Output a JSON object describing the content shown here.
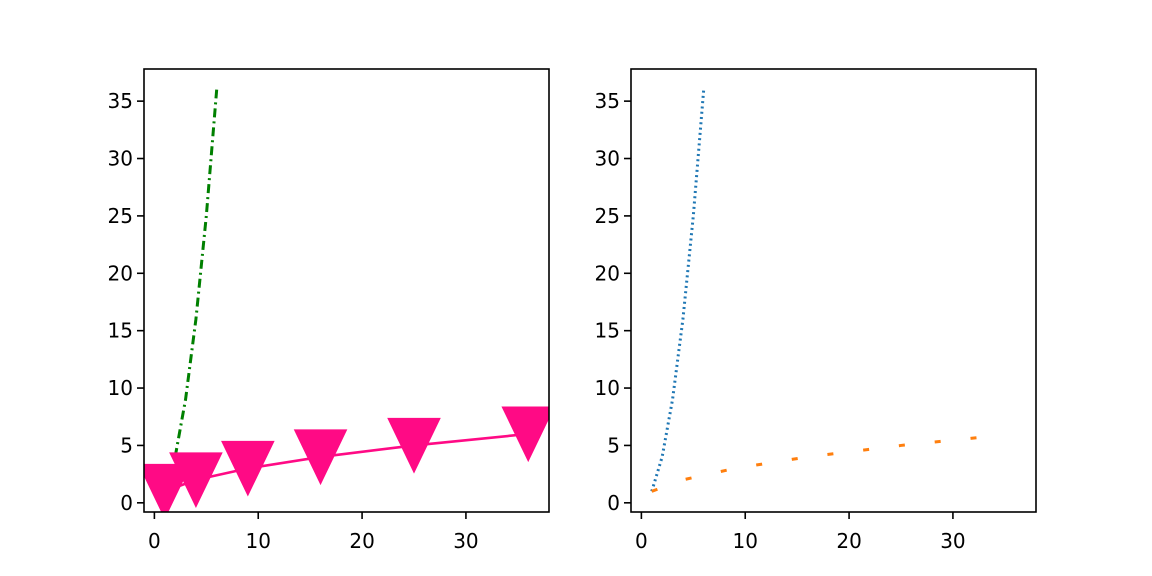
{
  "chart_data": [
    {
      "type": "line",
      "xlim": [
        -1,
        38
      ],
      "ylim": [
        -0.8,
        37.8
      ],
      "xticks": [
        0,
        10,
        20,
        30
      ],
      "yticks": [
        0,
        5,
        10,
        15,
        20,
        25,
        30,
        35
      ],
      "xtick_labels": [
        "0",
        "10",
        "20",
        "30"
      ],
      "ytick_labels": [
        "0",
        "5",
        "10",
        "15",
        "20",
        "25",
        "30",
        "35"
      ],
      "grid": false,
      "series": [
        {
          "style": "dashdot",
          "color": "#008000",
          "marker": "none",
          "x": [
            2,
            3,
            4,
            5,
            6
          ],
          "y": [
            4,
            9,
            16,
            25,
            36
          ]
        },
        {
          "style": "solid",
          "color": "#ff0a85",
          "marker": "triangle-down",
          "x": [
            1,
            4,
            9,
            16,
            25,
            36
          ],
          "y": [
            1,
            2,
            3,
            4,
            5,
            6
          ]
        }
      ]
    },
    {
      "type": "line",
      "xlim": [
        -1,
        38
      ],
      "ylim": [
        -0.8,
        37.8
      ],
      "xticks": [
        0,
        10,
        20,
        30
      ],
      "yticks": [
        0,
        5,
        10,
        15,
        20,
        25,
        30,
        35
      ],
      "xtick_labels": [
        "0",
        "10",
        "20",
        "30"
      ],
      "ytick_labels": [
        "0",
        "5",
        "10",
        "15",
        "20",
        "25",
        "30",
        "35"
      ],
      "grid": false,
      "series": [
        {
          "style": "dotted",
          "color": "#1f77b4",
          "marker": "none",
          "x": [
            1,
            2,
            3,
            4,
            5,
            6
          ],
          "y": [
            1,
            4,
            9,
            16,
            25,
            36
          ]
        },
        {
          "style": "dashed-sparse",
          "color": "#ff7f0e",
          "marker": "none",
          "x": [
            1,
            4,
            9,
            16,
            25,
            33
          ],
          "y": [
            1,
            2,
            3,
            4,
            5,
            5.74
          ]
        }
      ]
    }
  ]
}
